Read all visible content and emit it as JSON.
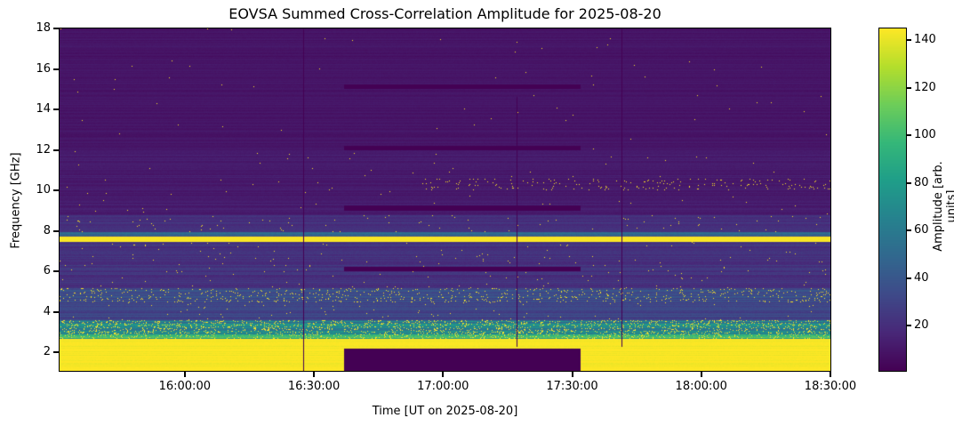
{
  "chart_data": {
    "type": "heatmap",
    "title": "EOVSA Summed Cross-Correlation Amplitude for 2025-08-20",
    "xlabel": "Time [UT on 2025-08-20]",
    "ylabel": "Frequency [GHz]",
    "xlim": [
      "15:30:55",
      "18:30:00"
    ],
    "ylim": [
      1.1,
      18
    ],
    "xticks": [
      "16:00:00",
      "16:30:00",
      "17:00:00",
      "17:30:00",
      "18:00:00",
      "18:30:00"
    ],
    "yticks": [
      2,
      4,
      6,
      8,
      10,
      12,
      14,
      16,
      18
    ],
    "colorbar": {
      "label": "Amplitude [arb. units]",
      "colormap": "viridis",
      "range": [
        1,
        145
      ],
      "ticks": [
        20,
        40,
        60,
        80,
        100,
        120,
        140
      ]
    },
    "background_bands": [
      {
        "f": [
          1.1,
          2.7
        ],
        "amp": 145,
        "noise": 5,
        "speckle": 0
      },
      {
        "f": [
          2.7,
          2.9
        ],
        "amp": 95,
        "noise": 25,
        "speckle": 0.1
      },
      {
        "f": [
          2.9,
          3.6
        ],
        "amp": 60,
        "noise": 25,
        "speckle": 0.12
      },
      {
        "f": [
          3.6,
          4.5
        ],
        "amp": 30,
        "noise": 8,
        "speckle": 0.005
      },
      {
        "f": [
          4.5,
          5.2
        ],
        "amp": 35,
        "noise": 10,
        "speckle": 0.05
      },
      {
        "f": [
          5.2,
          7.45
        ],
        "amp": 22,
        "noise": 7,
        "speckle": 0.004
      },
      {
        "f": [
          7.45,
          7.72
        ],
        "amp": 145,
        "noise": 3,
        "speckle": 0
      },
      {
        "f": [
          7.72,
          7.95
        ],
        "amp": 45,
        "noise": 15,
        "speckle": 0
      },
      {
        "f": [
          7.95,
          8.8
        ],
        "amp": 20,
        "noise": 6,
        "speckle": 0.006
      },
      {
        "f": [
          8.8,
          12
        ],
        "amp": 12,
        "noise": 4,
        "speckle": 0.001
      },
      {
        "f": [
          12,
          18
        ],
        "amp": 9,
        "noise": 3,
        "speckle": 0.0005
      }
    ],
    "burst_regions": [
      {
        "t": [
          "16:55:00",
          "18:30:00"
        ],
        "f": [
          10.0,
          10.6
        ],
        "probability": 0.03
      }
    ],
    "data_gaps": [
      {
        "t": [
          "16:37:00",
          "17:32:00"
        ],
        "f": [
          1.1,
          2.2
        ]
      },
      {
        "t": [
          "16:37:00",
          "17:32:00"
        ],
        "f": [
          6.0,
          6.25
        ]
      },
      {
        "t": [
          "16:37:00",
          "17:32:00"
        ],
        "f": [
          9.0,
          9.25
        ]
      },
      {
        "t": [
          "16:37:00",
          "17:32:00"
        ],
        "f": [
          12.0,
          12.2
        ]
      },
      {
        "t": [
          "16:37:00",
          "17:32:00"
        ],
        "f": [
          15.0,
          15.25
        ]
      },
      {
        "t": [
          "16:27:30",
          "16:27:45"
        ],
        "f": [
          1.1,
          18
        ]
      },
      {
        "t": [
          "17:17:00",
          "17:17:15"
        ],
        "f": [
          2.3,
          14.6
        ]
      },
      {
        "t": [
          "17:41:30",
          "17:41:45"
        ],
        "f": [
          2.3,
          18
        ]
      }
    ]
  }
}
